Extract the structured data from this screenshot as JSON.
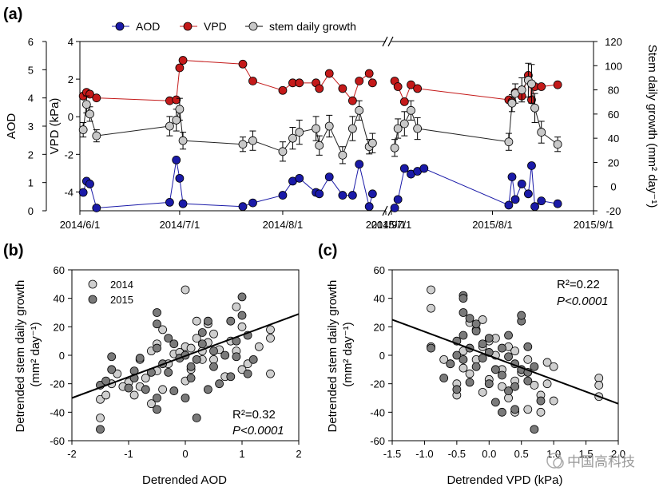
{
  "panel_labels": {
    "a": "(a)",
    "b": "(b)",
    "c": "(c)"
  },
  "watermark": "中国高科技",
  "colors": {
    "aod": "#1a1aa8",
    "vpd": "#c41a1a",
    "growth": "#c8c8c8",
    "growth_line": "#222222",
    "fit_line": "#000000",
    "y2014": "#cfcfcf",
    "y2015": "#7a7a7a"
  },
  "chart_data": [
    {
      "id": "a",
      "type": "line",
      "legend": [
        "AOD",
        "VPD",
        "stem daily growth"
      ],
      "legend_position": "top",
      "y_left_outer": {
        "label": "AOD",
        "ticks": [
          "0",
          "1",
          "2",
          "3",
          "4",
          "5",
          "6"
        ],
        "range": [
          0,
          6
        ]
      },
      "y_left_inner": {
        "label": "VPD (kPa)",
        "ticks": [
          "-4",
          "-2",
          "0",
          "2",
          "4"
        ],
        "range": [
          -5,
          4
        ]
      },
      "y_right": {
        "label": "Stem  daily growth  (mm² day⁻¹)",
        "ticks": [
          "-20",
          "0",
          "20",
          "40",
          "60",
          "80",
          "100",
          "120"
        ],
        "range": [
          -20,
          120
        ]
      },
      "x_segments": [
        {
          "start_day": 0,
          "end_day": 92,
          "ticks": [
            "2014/6/1",
            "2014/7/1",
            "2014/8/1",
            "2014/9/1"
          ],
          "tick_days": [
            0,
            30,
            61,
            92
          ]
        },
        {
          "start_day": 0,
          "end_day": 62,
          "ticks": [
            "2015/7/1",
            "2015/8/1",
            "2015/9/1"
          ],
          "tick_days": [
            0,
            31,
            62
          ]
        }
      ],
      "series": [
        {
          "name": "AOD",
          "segment": 0,
          "x": [
            1,
            2,
            3,
            5,
            27,
            29,
            30,
            31,
            49,
            52,
            61,
            64,
            66,
            71,
            72,
            75,
            79,
            82,
            84,
            87,
            88
          ],
          "y": [
            0.65,
            1.05,
            0.95,
            0.1,
            0.3,
            1.8,
            1.15,
            0.25,
            0.15,
            0.28,
            0.55,
            1.05,
            1.15,
            0.65,
            0.6,
            1.2,
            0.55,
            0.55,
            1.65,
            0.15,
            0.6
          ]
        },
        {
          "name": "AOD",
          "segment": 1,
          "x": [
            1,
            2,
            4,
            6,
            8,
            10,
            36,
            37,
            38,
            40,
            42,
            43,
            44,
            46,
            51
          ],
          "y": [
            0.1,
            0.4,
            1.5,
            1.3,
            1.4,
            1.5,
            0.2,
            1.2,
            0.4,
            0.95,
            0.6,
            1.6,
            0.15,
            0.35,
            0.25
          ]
        },
        {
          "name": "VPD",
          "segment": 0,
          "x": [
            1,
            2,
            3,
            5,
            27,
            29,
            30,
            31,
            49,
            52,
            61,
            64,
            66,
            71,
            72,
            75,
            79,
            82,
            84,
            87,
            88
          ],
          "y": [
            1.1,
            1.3,
            1.2,
            1.0,
            0.85,
            0.9,
            2.6,
            3.0,
            2.8,
            1.9,
            1.4,
            1.8,
            1.8,
            1.8,
            1.5,
            2.3,
            1.5,
            0.85,
            1.9,
            2.3,
            1.8
          ]
        },
        {
          "name": "VPD",
          "segment": 1,
          "x": [
            1,
            2,
            4,
            6,
            8,
            36,
            37,
            38,
            40,
            42,
            43,
            44,
            46,
            51
          ],
          "y": [
            1.9,
            1.6,
            0.8,
            1.7,
            1.5,
            0.9,
            0.8,
            1.3,
            1.1,
            2.2,
            0.9,
            1.6,
            1.6,
            1.7
          ]
        },
        {
          "name": "stem daily growth",
          "segment": 0,
          "x": [
            1,
            2,
            3,
            5,
            27,
            29,
            30,
            31,
            49,
            52,
            61,
            64,
            66,
            71,
            72,
            75,
            79,
            82,
            84,
            87,
            88
          ],
          "y": [
            47,
            68,
            60,
            42,
            50,
            55,
            64,
            38,
            35,
            38,
            29,
            40,
            45,
            48,
            34,
            50,
            26,
            48,
            63,
            33,
            36
          ],
          "err": [
            6,
            7,
            6,
            5,
            8,
            9,
            9,
            7,
            6,
            8,
            8,
            9,
            10,
            10,
            8,
            9,
            7,
            10,
            8,
            6,
            8
          ]
        },
        {
          "name": "stem daily growth",
          "segment": 1,
          "x": [
            1,
            2,
            4,
            6,
            8,
            36,
            37,
            38,
            40,
            42,
            43,
            44,
            46,
            51
          ],
          "y": [
            32,
            48,
            52,
            63,
            48,
            37,
            69,
            77,
            80,
            88,
            85,
            65,
            45,
            35
          ],
          "err": [
            7,
            8,
            10,
            8,
            9,
            7,
            7,
            8,
            10,
            14,
            16,
            12,
            9,
            6
          ]
        }
      ]
    },
    {
      "id": "b",
      "type": "scatter",
      "xlabel": "Detrended AOD",
      "ylabel": "Detrended stem  daily growth\n(mm² day⁻¹)",
      "xlim": [
        -2,
        2
      ],
      "ylim": [
        -60,
        60
      ],
      "x_ticks": [
        "-2",
        "-1",
        "0",
        "1",
        "2"
      ],
      "y_ticks": [
        "-60",
        "-40",
        "-20",
        "0",
        "20",
        "40",
        "60"
      ],
      "legend": [
        "2014",
        "2015"
      ],
      "legend_position": "top-left",
      "fit_line": {
        "x": [
          -2,
          2
        ],
        "y": [
          -30,
          29
        ]
      },
      "stats": {
        "r2": "R²=0.32",
        "p": "P<0.0001"
      },
      "series": [
        {
          "name": "2014",
          "points": [
            [
              -1.5,
              -44
            ],
            [
              -1.5,
              -31
            ],
            [
              -1.4,
              -28
            ],
            [
              -1.3,
              -20
            ],
            [
              -1.2,
              -13
            ],
            [
              -1.0,
              -19
            ],
            [
              -0.9,
              -28
            ],
            [
              -0.8,
              -22
            ],
            [
              -0.8,
              -3
            ],
            [
              -0.7,
              -16
            ],
            [
              -0.6,
              3
            ],
            [
              -0.5,
              -11
            ],
            [
              -0.5,
              8
            ],
            [
              -0.4,
              18
            ],
            [
              -0.3,
              -6
            ],
            [
              -0.2,
              1
            ],
            [
              -0.1,
              2
            ],
            [
              0.0,
              6
            ],
            [
              0.0,
              46
            ],
            [
              0.1,
              -10
            ],
            [
              0.1,
              5
            ],
            [
              0.2,
              12
            ],
            [
              0.2,
              24
            ],
            [
              0.3,
              -3
            ],
            [
              0.3,
              3
            ],
            [
              0.4,
              9
            ],
            [
              0.5,
              15
            ],
            [
              0.5,
              -3
            ],
            [
              0.6,
              4
            ],
            [
              0.7,
              -15
            ],
            [
              0.8,
              10
            ],
            [
              0.9,
              3
            ],
            [
              1.0,
              -10
            ],
            [
              1.0,
              20
            ],
            [
              1.1,
              -6
            ],
            [
              1.3,
              6
            ],
            [
              1.5,
              12
            ],
            [
              1.5,
              18
            ],
            [
              1.5,
              -13
            ],
            [
              -0.6,
              -34
            ],
            [
              -0.4,
              -24
            ],
            [
              0.0,
              -18
            ],
            [
              0.4,
              22
            ],
            [
              0.9,
              34
            ],
            [
              -1.1,
              -22
            ]
          ]
        },
        {
          "name": "2015",
          "points": [
            [
              -1.5,
              -52
            ],
            [
              -1.5,
              -21
            ],
            [
              -1.4,
              -18
            ],
            [
              -1.3,
              -1
            ],
            [
              -1.3,
              -10
            ],
            [
              -1.0,
              -23
            ],
            [
              -0.9,
              -11
            ],
            [
              -0.8,
              -2
            ],
            [
              -0.7,
              -24
            ],
            [
              -0.6,
              -12
            ],
            [
              -0.5,
              -38
            ],
            [
              -0.5,
              -30
            ],
            [
              -0.5,
              5
            ],
            [
              -0.5,
              22
            ],
            [
              -0.5,
              30
            ],
            [
              -0.4,
              -6
            ],
            [
              -0.3,
              12
            ],
            [
              -0.2,
              8
            ],
            [
              -0.2,
              -25
            ],
            [
              -0.1,
              -2
            ],
            [
              0.0,
              0
            ],
            [
              0.1,
              -16
            ],
            [
              0.1,
              -8
            ],
            [
              0.2,
              -44
            ],
            [
              0.2,
              -3
            ],
            [
              0.3,
              8
            ],
            [
              0.3,
              16
            ],
            [
              0.4,
              -24
            ],
            [
              0.4,
              24
            ],
            [
              0.5,
              -8
            ],
            [
              0.5,
              3
            ],
            [
              0.7,
              0
            ],
            [
              0.8,
              -15
            ],
            [
              0.8,
              24
            ],
            [
              0.9,
              -1
            ],
            [
              0.9,
              10
            ],
            [
              1.0,
              28
            ],
            [
              1.0,
              41
            ],
            [
              1.1,
              -13
            ],
            [
              1.1,
              14
            ],
            [
              1.2,
              -3
            ],
            [
              -0.9,
              -16
            ],
            [
              -0.3,
              -12
            ],
            [
              0.0,
              -30
            ],
            [
              0.6,
              -20
            ]
          ]
        }
      ]
    },
    {
      "id": "c",
      "type": "scatter",
      "xlabel": "Detrended VPD  (kPa)",
      "ylabel": "Detrended stem  daily growth\n(mm² day⁻¹)",
      "xlim": [
        -1.5,
        2.0
      ],
      "ylim": [
        -60,
        60
      ],
      "x_ticks": [
        "-1.5",
        "-1.0",
        "-0.5",
        "0.0",
        "0.5",
        "1.0",
        "1.5",
        "2.0"
      ],
      "y_ticks": [
        "-60",
        "-40",
        "-20",
        "0",
        "20",
        "40",
        "60"
      ],
      "fit_line": {
        "x": [
          -1.5,
          2.0
        ],
        "y": [
          25,
          -34
        ]
      },
      "stats": {
        "r2": "R²=0.22",
        "p": "P<0.0001"
      },
      "series": [
        {
          "name": "2014",
          "points": [
            [
              -0.9,
              46
            ],
            [
              -0.9,
              33
            ],
            [
              -0.9,
              6
            ],
            [
              -0.6,
              -6
            ],
            [
              -0.5,
              -20
            ],
            [
              -0.5,
              -28
            ],
            [
              -0.4,
              3
            ],
            [
              -0.4,
              -9
            ],
            [
              -0.3,
              23
            ],
            [
              -0.3,
              -13
            ],
            [
              -0.2,
              -3
            ],
            [
              -0.2,
              18
            ],
            [
              -0.1,
              6
            ],
            [
              -0.1,
              -26
            ],
            [
              0.0,
              10
            ],
            [
              0.0,
              -17
            ],
            [
              0.1,
              0
            ],
            [
              0.1,
              12
            ],
            [
              0.2,
              -10
            ],
            [
              0.2,
              -22
            ],
            [
              0.3,
              6
            ],
            [
              0.3,
              -30
            ],
            [
              0.4,
              3
            ],
            [
              0.4,
              -18
            ],
            [
              0.5,
              -12
            ],
            [
              0.6,
              -3
            ],
            [
              0.6,
              -38
            ],
            [
              0.7,
              -21
            ],
            [
              0.8,
              -28
            ],
            [
              0.8,
              -40
            ],
            [
              0.9,
              -5
            ],
            [
              0.9,
              -20
            ],
            [
              1.0,
              -8
            ],
            [
              1.0,
              -32
            ],
            [
              1.7,
              -16
            ],
            [
              1.7,
              -21
            ],
            [
              1.7,
              -29
            ],
            [
              -0.7,
              -3
            ],
            [
              -0.1,
              25
            ],
            [
              0.4,
              -40
            ]
          ]
        },
        {
          "name": "2015",
          "points": [
            [
              -0.9,
              5
            ],
            [
              -0.7,
              -16
            ],
            [
              -0.6,
              -6
            ],
            [
              -0.5,
              -24
            ],
            [
              -0.5,
              0
            ],
            [
              -0.5,
              10
            ],
            [
              -0.4,
              42
            ],
            [
              -0.4,
              30
            ],
            [
              -0.4,
              14
            ],
            [
              -0.4,
              -3
            ],
            [
              -0.3,
              26
            ],
            [
              -0.3,
              5
            ],
            [
              -0.3,
              -19
            ],
            [
              -0.2,
              17
            ],
            [
              -0.2,
              -8
            ],
            [
              -0.1,
              8
            ],
            [
              -0.1,
              -2
            ],
            [
              0.0,
              -20
            ],
            [
              0.0,
              2
            ],
            [
              0.1,
              -33
            ],
            [
              0.1,
              -10
            ],
            [
              0.2,
              -14
            ],
            [
              0.2,
              5
            ],
            [
              0.3,
              -25
            ],
            [
              0.3,
              -1
            ],
            [
              0.3,
              14
            ],
            [
              0.4,
              -6
            ],
            [
              0.4,
              -22
            ],
            [
              0.4,
              -38
            ],
            [
              0.5,
              24
            ],
            [
              0.5,
              -10
            ],
            [
              0.6,
              -18
            ],
            [
              0.6,
              -12
            ],
            [
              0.7,
              -8
            ],
            [
              0.7,
              -52
            ],
            [
              0.8,
              -32
            ],
            [
              -0.4,
              40
            ],
            [
              0.5,
              28
            ],
            [
              0.2,
              -40
            ],
            [
              -0.2,
              22
            ],
            [
              0.0,
              12
            ],
            [
              0.6,
              6
            ]
          ]
        }
      ]
    }
  ]
}
